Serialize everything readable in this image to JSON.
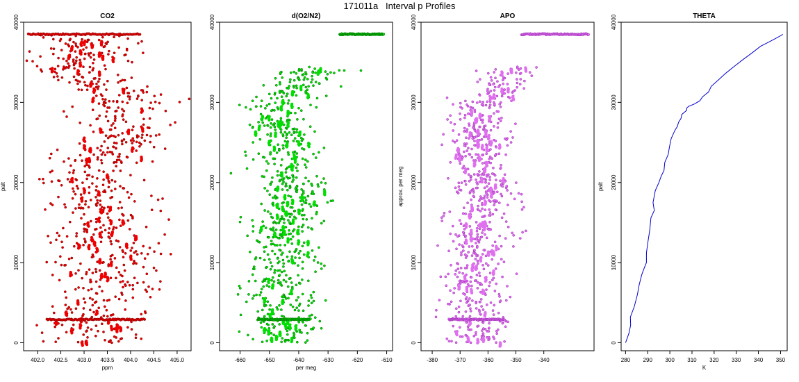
{
  "page": {
    "title": "171011a   Interval p Profiles"
  },
  "chart_data": [
    {
      "type": "scatter",
      "title": "CO2",
      "xlabel": "ppm",
      "ylabel": "palt",
      "xlim": [
        401.7,
        405.3
      ],
      "ylim": [
        -1000,
        40000
      ],
      "xticks": [
        402.0,
        402.5,
        403.0,
        403.5,
        404.0,
        404.5,
        405.0
      ],
      "xtick_labels": [
        "402.0",
        "402.5",
        "403.0",
        "403.5",
        "404.0",
        "404.5",
        "405.0"
      ],
      "yticks": [
        0,
        10000,
        20000,
        30000,
        40000
      ],
      "ytick_labels": [
        "0",
        "10000",
        "20000",
        "30000",
        "40000"
      ],
      "point_fill": "#ee0000",
      "point_edge": "#7a0000",
      "profile": [
        [
          403.3,
          0
        ],
        [
          403.2,
          3000
        ],
        [
          403.1,
          5000
        ],
        [
          403.6,
          7000
        ],
        [
          403.2,
          9000
        ],
        [
          403.7,
          11000
        ],
        [
          403.2,
          13000
        ],
        [
          403.5,
          15000
        ],
        [
          403.2,
          17000
        ],
        [
          403.5,
          18500
        ],
        [
          402.9,
          20000
        ],
        [
          403.2,
          22000
        ],
        [
          403.6,
          24000
        ],
        [
          403.8,
          26000
        ],
        [
          403.9,
          28000
        ],
        [
          404.0,
          30000
        ],
        [
          403.9,
          31500
        ],
        [
          403.2,
          33000
        ],
        [
          402.8,
          34500
        ],
        [
          403.3,
          36000
        ],
        [
          403.0,
          37500
        ],
        [
          402.8,
          38500
        ]
      ],
      "spread": 0.55,
      "dense_rows": [
        {
          "y": 38500,
          "x_from": 401.8,
          "x_to": 404.2
        },
        {
          "y": 2900,
          "x_from": 402.2,
          "x_to": 404.3
        }
      ]
    },
    {
      "type": "scatter",
      "title": "d(O2/N2)",
      "xlabel": "per meg",
      "ylabel": "",
      "xlim": [
        -667,
        -608
      ],
      "ylim": [
        -1000,
        40000
      ],
      "xticks": [
        -660,
        -650,
        -640,
        -630,
        -620,
        -610
      ],
      "xtick_labels": [
        "-660",
        "-650",
        "-640",
        "-630",
        "-620",
        "-610"
      ],
      "yticks": [
        0,
        10000,
        20000,
        30000,
        40000
      ],
      "ytick_labels": [
        "0",
        "10000",
        "20000",
        "30000",
        "40000"
      ],
      "point_fill": "#00e000",
      "point_edge": "#006a00",
      "profile": [
        [
          -645,
          0
        ],
        [
          -645,
          3000
        ],
        [
          -647,
          5000
        ],
        [
          -648,
          7000
        ],
        [
          -646,
          9000
        ],
        [
          -645,
          11000
        ],
        [
          -645,
          13000
        ],
        [
          -646,
          15000
        ],
        [
          -641,
          17500
        ],
        [
          -641,
          19500
        ],
        [
          -645,
          21000
        ],
        [
          -644,
          23000
        ],
        [
          -644,
          25000
        ],
        [
          -645,
          27000
        ],
        [
          -647,
          28500
        ],
        [
          -645,
          30000
        ],
        [
          -640,
          32000
        ],
        [
          -636,
          33500
        ],
        [
          -633,
          34500
        ]
      ],
      "spread": 6,
      "dense_rows": [
        {
          "y": 38500,
          "x_from": -626,
          "x_to": -611
        },
        {
          "y": 2900,
          "x_from": -654,
          "x_to": -636
        }
      ]
    },
    {
      "type": "scatter",
      "title": "APO",
      "xlabel": "",
      "ylabel": "approx. per meg",
      "xlim": [
        -384,
        -322
      ],
      "ylim": [
        -1000,
        40000
      ],
      "xticks": [
        -380,
        -370,
        -360,
        -350,
        -340
      ],
      "xtick_labels": [
        "-380",
        "-370",
        "-360",
        "-350",
        "-340"
      ],
      "yticks": [
        0,
        10000,
        20000,
        30000,
        40000
      ],
      "ytick_labels": [
        "0",
        "10000",
        "20000",
        "30000",
        "40000"
      ],
      "point_fill": "#e070f0",
      "point_edge": "#9a2ab0",
      "profile": [
        [
          -363,
          0
        ],
        [
          -364,
          3000
        ],
        [
          -365,
          5000
        ],
        [
          -366,
          7000
        ],
        [
          -364,
          9000
        ],
        [
          -363,
          11000
        ],
        [
          -363,
          13000
        ],
        [
          -364,
          15000
        ],
        [
          -360,
          17500
        ],
        [
          -360,
          19500
        ],
        [
          -363,
          21000
        ],
        [
          -362,
          23000
        ],
        [
          -362,
          25000
        ],
        [
          -363,
          27000
        ],
        [
          -364,
          28500
        ],
        [
          -362,
          30000
        ],
        [
          -356,
          32000
        ],
        [
          -353,
          33500
        ],
        [
          -352,
          34500
        ]
      ],
      "spread": 6,
      "dense_rows": [
        {
          "y": 38500,
          "x_from": -348,
          "x_to": -324
        },
        {
          "y": 2900,
          "x_from": -374,
          "x_to": -354
        }
      ]
    },
    {
      "type": "line",
      "title": "THETA",
      "xlabel": "K",
      "ylabel": "palt",
      "xlim": [
        278,
        353
      ],
      "ylim": [
        -1000,
        40000
      ],
      "xticks": [
        280,
        290,
        300,
        310,
        320,
        330,
        340,
        350
      ],
      "xtick_labels": [
        "280",
        "290",
        "300",
        "310",
        "320",
        "330",
        "340",
        "350"
      ],
      "yticks": [
        0,
        10000,
        20000,
        30000,
        40000
      ],
      "ytick_labels": [
        "0",
        "10000",
        "20000",
        "30000",
        "40000"
      ],
      "line_color": "#0000cc",
      "x": [
        280.0,
        281.0,
        282.0,
        282.5,
        284.0,
        285.5,
        286.0,
        287.0,
        288.0,
        289.0,
        289.5,
        290.5,
        291.0,
        292.0,
        292.5,
        293.0,
        294.0,
        295.0,
        296.0,
        297.0,
        298.0,
        299.0,
        300.0,
        301.0,
        302.0,
        303.0,
        304.0,
        305.0,
        306.0,
        307.0,
        308.0,
        309.0,
        311.0,
        313.0,
        315.0,
        317.0,
        319.0,
        322.0,
        325.0,
        329.0,
        333.0,
        337.0,
        341.0,
        345.0,
        348.0,
        350.0,
        351.0
      ],
      "y": [
        0,
        1200,
        2200,
        3200,
        4500,
        6000,
        7200,
        8500,
        9200,
        10000,
        11200,
        12500,
        14000,
        15600,
        16500,
        17500,
        19000,
        20000,
        20800,
        21500,
        22500,
        23500,
        24500,
        25500,
        26500,
        27000,
        27500,
        28000,
        28500,
        29000,
        29300,
        29500,
        29800,
        30200,
        30700,
        31300,
        32000,
        32800,
        33600,
        34500,
        35300,
        36200,
        37000,
        37600,
        38000,
        38400,
        38500
      ]
    }
  ]
}
